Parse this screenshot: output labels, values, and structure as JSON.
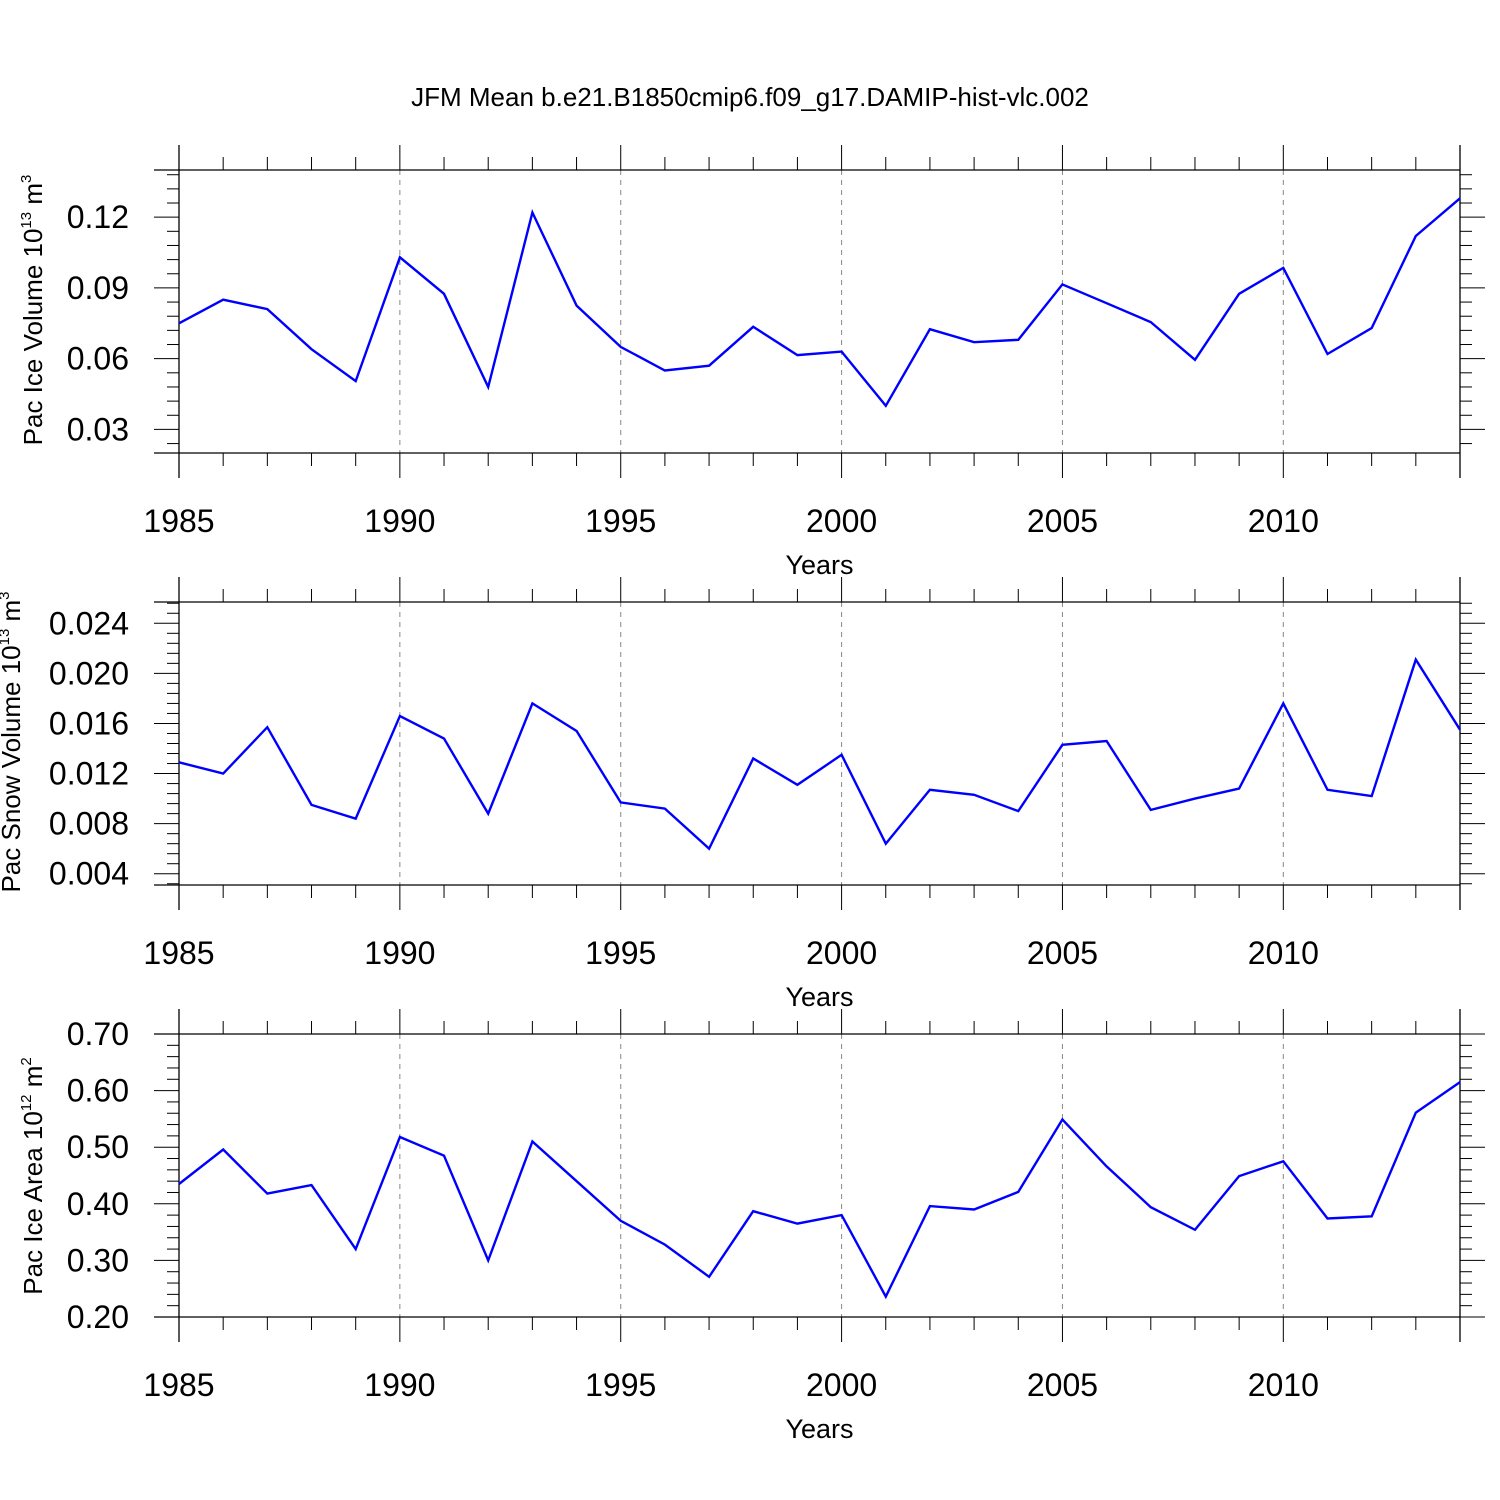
{
  "title": "JFM Mean b.e21.B1850cmip6.f09_g17.DAMIP-hist-vlc.002",
  "colors": {
    "series": "#0000ff",
    "axis": "#000000",
    "grid": "#888888"
  },
  "chart_data": [
    {
      "type": "line",
      "ylabel": {
        "text": "Pac Ice Volume 10",
        "exponent": "13",
        "unit": " m",
        "unit_exponent": "3"
      },
      "xlabel": "Years",
      "xlim": [
        1985,
        2014
      ],
      "ylim": [
        0.02,
        0.14
      ],
      "yticks": [
        "0.03",
        "0.06",
        "0.09",
        "0.12"
      ],
      "xticks": [
        "1985",
        "1990",
        "1995",
        "2000",
        "2005",
        "2010"
      ],
      "grid": "vertical dashed at major x ticks",
      "series": [
        {
          "name": "Pac Ice Volume",
          "x": [
            1985,
            1986,
            1987,
            1988,
            1989,
            1990,
            1991,
            1992,
            1993,
            1994,
            1995,
            1996,
            1997,
            1998,
            1999,
            2000,
            2001,
            2002,
            2003,
            2004,
            2005,
            2006,
            2007,
            2008,
            2009,
            2010,
            2011,
            2012,
            2013,
            2014
          ],
          "values": [
            0.075,
            0.085,
            0.081,
            0.064,
            0.0505,
            0.103,
            0.0875,
            0.048,
            0.122,
            0.0825,
            0.065,
            0.055,
            0.057,
            0.0735,
            0.0615,
            0.063,
            0.04,
            0.0725,
            0.067,
            0.068,
            0.0915,
            0.0835,
            0.0755,
            0.0595,
            0.0875,
            0.0985,
            0.062,
            0.073,
            0.112,
            0.128
          ]
        }
      ]
    },
    {
      "type": "line",
      "ylabel": {
        "text": "Pac Snow Volume 10",
        "exponent": "13",
        "unit": " m",
        "unit_exponent": "3"
      },
      "xlabel": "Years",
      "xlim": [
        1985,
        2014
      ],
      "ylim": [
        0.0031,
        0.0257
      ],
      "yticks": [
        "0.004",
        "0.008",
        "0.012",
        "0.016",
        "0.020",
        "0.024"
      ],
      "xticks": [
        "1985",
        "1990",
        "1995",
        "2000",
        "2005",
        "2010"
      ],
      "grid": "vertical dashed at major x ticks",
      "series": [
        {
          "name": "Pac Snow Volume",
          "x": [
            1985,
            1986,
            1987,
            1988,
            1989,
            1990,
            1991,
            1992,
            1993,
            1994,
            1995,
            1996,
            1997,
            1998,
            1999,
            2000,
            2001,
            2002,
            2003,
            2004,
            2005,
            2006,
            2007,
            2008,
            2009,
            2010,
            2011,
            2012,
            2013,
            2014
          ],
          "values": [
            0.0129,
            0.012,
            0.0157,
            0.0095,
            0.0084,
            0.0166,
            0.0148,
            0.0088,
            0.0176,
            0.0154,
            0.0097,
            0.0092,
            0.006,
            0.0132,
            0.0111,
            0.0135,
            0.0064,
            0.0107,
            0.0103,
            0.009,
            0.0143,
            0.0146,
            0.0091,
            0.01,
            0.0108,
            0.0176,
            0.0107,
            0.0102,
            0.0211,
            0.0155
          ]
        }
      ]
    },
    {
      "type": "line",
      "ylabel": {
        "text": "Pac Ice Area 10",
        "exponent": "12",
        "unit": " m",
        "unit_exponent": "2"
      },
      "xlabel": "Years",
      "xlim": [
        1985,
        2014
      ],
      "ylim": [
        0.2,
        0.7
      ],
      "yticks": [
        "0.20",
        "0.30",
        "0.40",
        "0.50",
        "0.60",
        "0.70"
      ],
      "xticks": [
        "1985",
        "1990",
        "1995",
        "2000",
        "2005",
        "2010"
      ],
      "grid": "vertical dashed at major x ticks",
      "series": [
        {
          "name": "Pac Ice Area",
          "x": [
            1985,
            1986,
            1987,
            1988,
            1989,
            1990,
            1991,
            1992,
            1993,
            1994,
            1995,
            1996,
            1997,
            1998,
            1999,
            2000,
            2001,
            2002,
            2003,
            2004,
            2005,
            2006,
            2007,
            2008,
            2009,
            2010,
            2011,
            2012,
            2013,
            2014
          ],
          "values": [
            0.435,
            0.496,
            0.418,
            0.433,
            0.32,
            0.518,
            0.485,
            0.3,
            0.51,
            0.44,
            0.37,
            0.328,
            0.271,
            0.387,
            0.365,
            0.38,
            0.236,
            0.396,
            0.39,
            0.421,
            0.549,
            0.466,
            0.394,
            0.354,
            0.449,
            0.475,
            0.374,
            0.378,
            0.561,
            0.615
          ]
        }
      ]
    }
  ]
}
